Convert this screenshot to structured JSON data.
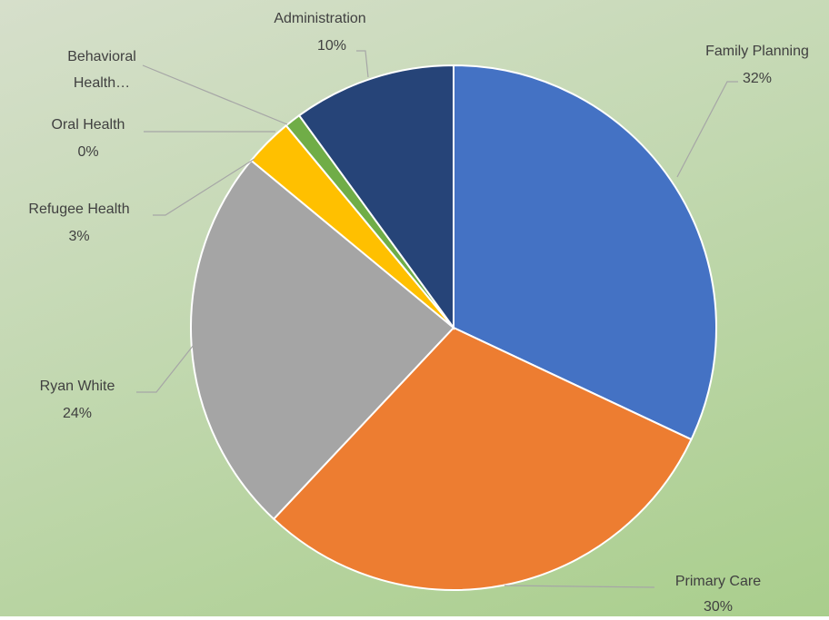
{
  "chart_data": {
    "type": "pie",
    "categories": [
      "Family Planning",
      "Primary Care",
      "Ryan White",
      "Refugee Health",
      "Oral Health",
      "Behavioral Health…",
      "Administration"
    ],
    "values": [
      32,
      30,
      24,
      3,
      0,
      1,
      10
    ],
    "value_labels": [
      "32%",
      "30%",
      "24%",
      "3%",
      "0%",
      null,
      "10%"
    ],
    "colors": [
      "#4472c4",
      "#ed7d31",
      "#a5a5a5",
      "#ffc000",
      "#5b9bd5",
      "#70ad47",
      "#264478"
    ]
  }
}
